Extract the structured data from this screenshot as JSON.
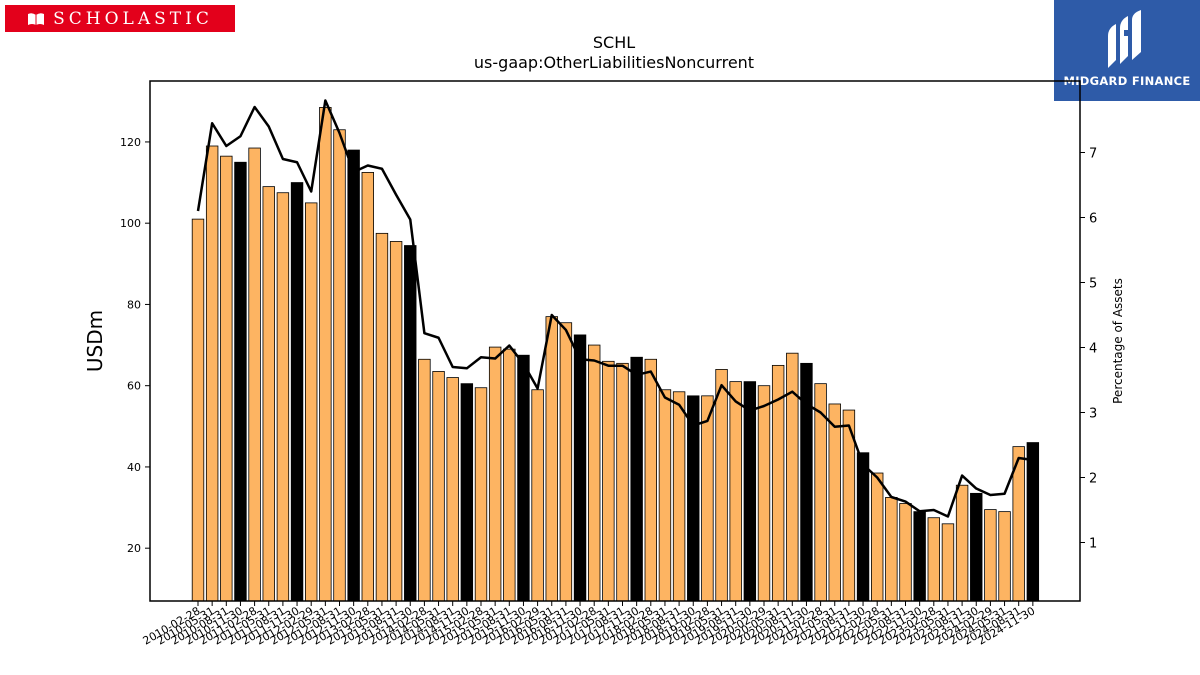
{
  "logos": {
    "left": {
      "text": "SCHOLASTIC",
      "color": "#e3001b"
    },
    "right": {
      "text": "MIDGARD FINANCE",
      "color": "#2e5ba8"
    }
  },
  "chart_data": {
    "type": "bar",
    "title": "SCHL",
    "subtitle": "us-gaap:OtherLiabilitiesNoncurrent",
    "ylabel": "USDm",
    "y2label": "Percentage of Assets",
    "ylim": [
      7,
      135
    ],
    "y2lim": [
      0.1,
      8.1
    ],
    "yticks": [
      20,
      40,
      60,
      80,
      100,
      120
    ],
    "y2ticks": [
      1,
      2,
      3,
      4,
      5,
      6,
      7
    ],
    "colors": {
      "bar": "#fdb462",
      "bar_highlight": "#000000",
      "line": "#000000"
    },
    "categories": [
      "2010-02-28",
      "2010-05-31",
      "2010-08-31",
      "2010-11-30",
      "2011-02-28",
      "2011-05-31",
      "2011-08-31",
      "2011-11-30",
      "2012-02-29",
      "2012-05-31",
      "2012-08-31",
      "2012-11-30",
      "2013-02-28",
      "2013-05-31",
      "2013-08-31",
      "2013-11-30",
      "2014-02-28",
      "2014-05-31",
      "2014-08-31",
      "2014-11-30",
      "2015-02-28",
      "2015-05-31",
      "2015-08-31",
      "2015-11-30",
      "2016-02-29",
      "2016-05-31",
      "2016-08-31",
      "2016-11-30",
      "2017-02-28",
      "2017-05-31",
      "2017-08-31",
      "2017-11-30",
      "2018-02-28",
      "2018-05-31",
      "2018-08-31",
      "2018-11-30",
      "2019-02-28",
      "2019-05-31",
      "2019-08-31",
      "2019-11-30",
      "2020-02-29",
      "2020-05-31",
      "2020-08-31",
      "2020-11-30",
      "2021-02-28",
      "2021-05-31",
      "2021-08-31",
      "2021-11-30",
      "2022-02-28",
      "2022-05-31",
      "2022-08-31",
      "2022-11-30",
      "2023-02-28",
      "2023-05-31",
      "2023-08-31",
      "2023-11-30",
      "2024-02-29",
      "2024-05-31",
      "2024-08-31",
      "2024-11-30"
    ],
    "tick_labels": [
      "2010-02-28",
      "2010-05-31",
      "2010-08-31",
      "2010-11-30",
      "2011-02-28",
      "2011-05-31",
      "2011-08-31",
      "2011-11-30",
      "2012-02-29",
      "2012-05-31",
      "2012-08-31",
      "2012-11-30",
      "2013-02-28",
      "2013-05-31",
      "2013-08-31",
      "2013-11-30",
      "2014-02-28",
      "2014-05-31",
      "2014-08-31",
      "2014-11-30",
      "2015-02-28",
      "2015-05-31",
      "2015-08-31",
      "2015-11-30",
      "2016-02-29",
      "2016-05-31",
      "2016-08-31",
      "2016-11-30",
      "2017-02-28",
      "2017-05-31",
      "2017-08-31",
      "2017-11-30",
      "2018-02-28",
      "2018-05-31",
      "2018-08-31",
      "2018-11-30",
      "2019-02-28",
      "2019-05-31",
      "2019-08-31",
      "2019-11-30",
      "2020-02-29",
      "2020-05-31",
      "2020-08-31",
      "2020-11-30",
      "2021-02-28",
      "2021-05-31",
      "2021-08-31",
      "2021-11-30",
      "2022-02-28",
      "2022-05-31",
      "2022-08-31",
      "2022-11-30",
      "2023-02-28",
      "2023-05-31",
      "2023-08-31",
      "2023-11-30",
      "2024-02-29",
      "2024-05-31",
      "2024-08-31",
      "2024-11-30"
    ],
    "highlight_indices": [
      3,
      7,
      11,
      15,
      19,
      23,
      27,
      31,
      35,
      39,
      43,
      47,
      51,
      55,
      59
    ],
    "series": [
      {
        "type": "bar",
        "values": [
          101,
          119,
          116.5,
          115,
          118.5,
          109,
          107.5,
          110,
          105,
          128.5,
          123,
          118,
          112.5,
          97.5,
          95.5,
          94.5,
          66.5,
          63.5,
          62,
          60.5,
          59.5,
          69.5,
          69,
          67.5,
          59,
          77,
          75.5,
          72.5,
          70,
          66,
          65.5,
          67,
          66.5,
          59,
          58.5,
          57.5,
          57.5,
          64,
          61,
          61,
          60,
          65,
          68,
          65.5,
          60.5,
          55.5,
          54,
          43.5,
          38.5,
          32.5,
          31,
          29,
          27.5,
          26,
          35.5,
          33.5,
          29.5,
          29,
          45,
          46
        ]
      },
      {
        "type": "line",
        "axis": "right",
        "values": [
          6.1,
          7.45,
          7.1,
          7.25,
          7.7,
          7.4,
          6.9,
          6.85,
          6.4,
          7.8,
          7.3,
          6.7,
          6.8,
          6.75,
          6.35,
          5.97,
          4.22,
          4.15,
          3.7,
          3.68,
          3.85,
          3.83,
          4.03,
          3.75,
          3.37,
          4.5,
          4.27,
          3.82,
          3.8,
          3.72,
          3.72,
          3.58,
          3.63,
          3.23,
          3.12,
          2.8,
          2.87,
          3.42,
          3.17,
          3.03,
          3.1,
          3.2,
          3.32,
          3.13,
          3.0,
          2.78,
          2.8,
          2.2,
          2.0,
          1.7,
          1.63,
          1.48,
          1.5,
          1.4,
          2.03,
          1.83,
          1.73,
          1.75,
          2.3,
          2.27
        ]
      }
    ]
  }
}
